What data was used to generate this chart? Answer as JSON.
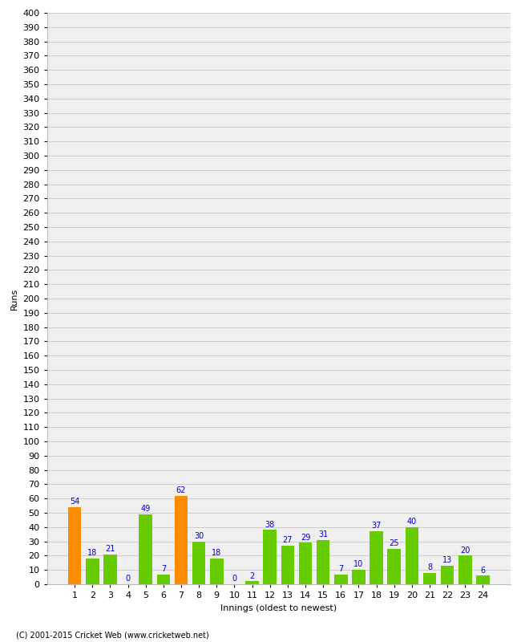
{
  "xlabel": "Innings (oldest to newest)",
  "ylabel": "Runs",
  "categories": [
    1,
    2,
    3,
    4,
    5,
    6,
    7,
    8,
    9,
    10,
    11,
    12,
    13,
    14,
    15,
    16,
    17,
    18,
    19,
    20,
    21,
    22,
    23,
    24
  ],
  "values": [
    54,
    18,
    21,
    0,
    49,
    7,
    62,
    30,
    18,
    0,
    2,
    38,
    27,
    29,
    31,
    7,
    10,
    37,
    25,
    40,
    8,
    13,
    20,
    6
  ],
  "colors": [
    "#ff8c00",
    "#66cc00",
    "#66cc00",
    "#66cc00",
    "#66cc00",
    "#66cc00",
    "#ff8c00",
    "#66cc00",
    "#66cc00",
    "#66cc00",
    "#66cc00",
    "#66cc00",
    "#66cc00",
    "#66cc00",
    "#66cc00",
    "#66cc00",
    "#66cc00",
    "#66cc00",
    "#66cc00",
    "#66cc00",
    "#66cc00",
    "#66cc00",
    "#66cc00",
    "#66cc00"
  ],
  "ylim": [
    0,
    400
  ],
  "yticks": [
    0,
    10,
    20,
    30,
    40,
    50,
    60,
    70,
    80,
    90,
    100,
    110,
    120,
    130,
    140,
    150,
    160,
    170,
    180,
    190,
    200,
    210,
    220,
    230,
    240,
    250,
    260,
    270,
    280,
    290,
    300,
    310,
    320,
    330,
    340,
    350,
    360,
    370,
    380,
    390,
    400
  ],
  "label_color": "#0000cc",
  "grid_color": "#cccccc",
  "background_color": "#f0f0f0",
  "footer": "(C) 2001-2015 Cricket Web (www.cricketweb.net)",
  "axis_fontsize": 8,
  "label_fontsize": 7,
  "bar_width": 0.75
}
